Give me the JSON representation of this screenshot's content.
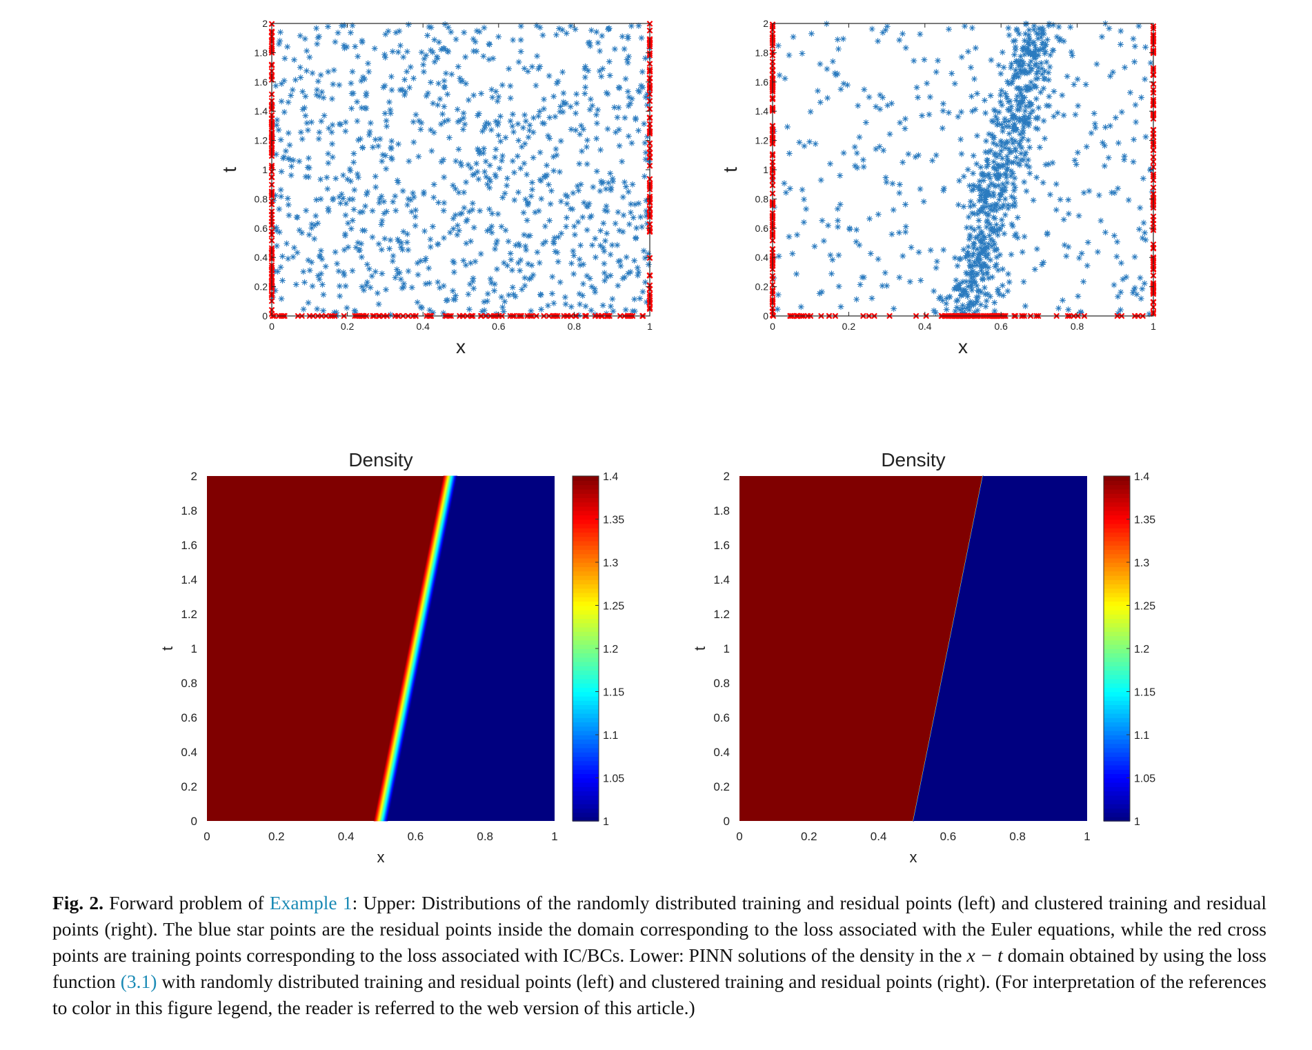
{
  "chart_data": [
    {
      "type": "scatter",
      "xlabel": "x",
      "ylabel": "t",
      "xlim": [
        0,
        1
      ],
      "ylim": [
        0,
        2
      ],
      "xticks": [
        "0",
        "0.2",
        "0.4",
        "0.6",
        "0.8",
        "1"
      ],
      "yticks": [
        "0",
        "0.2",
        "0.4",
        "0.6",
        "0.8",
        "1",
        "1.2",
        "1.4",
        "1.6",
        "1.8",
        "2"
      ],
      "series": [
        {
          "marker": "star",
          "color": "#2b7bbf",
          "distribution": "uniform over 0<x<1, 0<t<2",
          "n_points": 1000
        },
        {
          "marker": "x",
          "color": "#ff0000",
          "distribution": "random on t=0 and on x=0, x=1",
          "n_points": 300
        }
      ]
    },
    {
      "type": "scatter",
      "xlabel": "x",
      "ylabel": "t",
      "xlim": [
        0,
        1
      ],
      "ylim": [
        0,
        2
      ],
      "xticks": [
        "0",
        "0.2",
        "0.4",
        "0.6",
        "0.8",
        "1"
      ],
      "yticks": [
        "0",
        "0.2",
        "0.4",
        "0.6",
        "0.8",
        "1",
        "1.2",
        "1.4",
        "1.6",
        "1.8",
        "2"
      ],
      "series": [
        {
          "marker": "star",
          "color": "#2b7bbf",
          "distribution": "clustered along shock line x = 0.5 + 0.1 t",
          "n_points": 1000
        },
        {
          "marker": "x",
          "color": "#ff0000",
          "distribution": "on t=0 clustered near x=0.5, on x=0, x=1",
          "n_points": 300
        }
      ]
    },
    {
      "type": "heatmap",
      "title": "Density",
      "xlabel": "x",
      "ylabel": "t",
      "xlim": [
        0,
        1
      ],
      "ylim": [
        0,
        2
      ],
      "xticks": [
        "0",
        "0.2",
        "0.4",
        "0.6",
        "0.8",
        "1"
      ],
      "yticks": [
        "0",
        "0.2",
        "0.4",
        "0.6",
        "0.8",
        "1",
        "1.2",
        "1.4",
        "1.6",
        "1.8",
        "2"
      ],
      "colorbar": {
        "min": 1,
        "max": 1.4,
        "ticks": [
          "1",
          "1.05",
          "1.1",
          "1.15",
          "1.2",
          "1.25",
          "1.3",
          "1.35",
          "1.4"
        ],
        "colormap": "jet"
      },
      "field": {
        "left_value": 1.4,
        "right_value": 1.0,
        "interface": "x = 0.5 + 0.1 t",
        "smoothing_width": 0.04
      }
    },
    {
      "type": "heatmap",
      "title": "Density",
      "xlabel": "x",
      "ylabel": "t",
      "xlim": [
        0,
        1
      ],
      "ylim": [
        0,
        2
      ],
      "xticks": [
        "0",
        "0.2",
        "0.4",
        "0.6",
        "0.8",
        "1"
      ],
      "yticks": [
        "0",
        "0.2",
        "0.4",
        "0.6",
        "0.8",
        "1",
        "1.2",
        "1.4",
        "1.6",
        "1.8",
        "2"
      ],
      "colorbar": {
        "min": 1,
        "max": 1.4,
        "ticks": [
          "1",
          "1.05",
          "1.1",
          "1.15",
          "1.2",
          "1.25",
          "1.3",
          "1.35",
          "1.4"
        ],
        "colormap": "jet"
      },
      "field": {
        "left_value": 1.4,
        "right_value": 1.0,
        "interface": "x = 0.5 + 0.1 t",
        "smoothing_width": 0.002
      }
    }
  ],
  "caption": {
    "label": "Fig. 2.",
    "part1": " Forward problem of ",
    "link1": "Example 1",
    "part2": ": Upper: Distributions of the randomly distributed training and residual points (left) and clustered training and residual points (right). The blue star points are the residual points inside the domain corresponding to the loss associated with the Euler equations, while the red cross points are training points corresponding to the loss associated with IC/BCs. Lower: PINN solutions of the density in the ",
    "math": "x − t",
    "part3": " domain obtained by using the loss function ",
    "link2": "(3.1)",
    "part4": " with randomly distributed training and residual points (left) and clustered training and residual points (right). (For interpretation of the references to color in this figure legend, the reader is referred to the web version of this article.)"
  }
}
